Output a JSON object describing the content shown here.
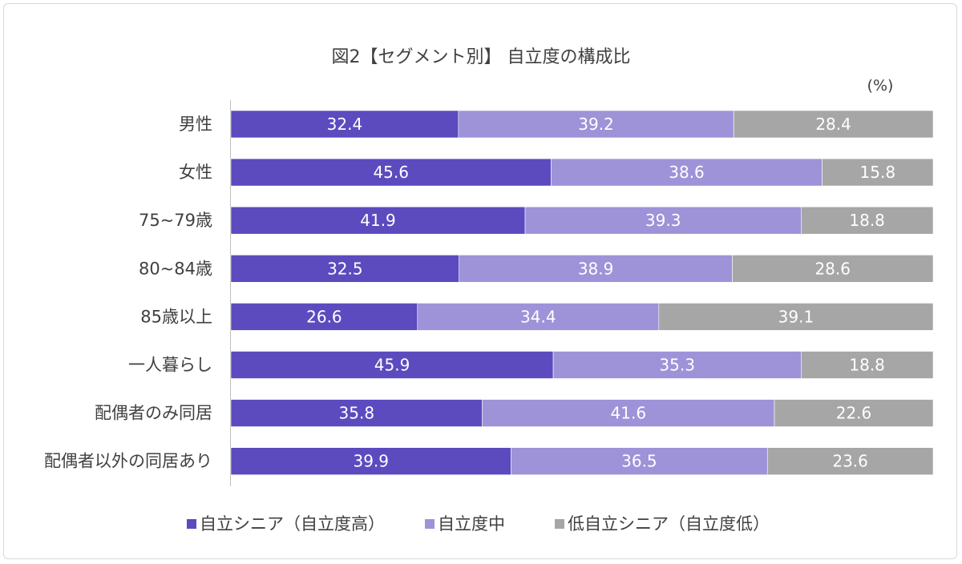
{
  "chart_data": {
    "type": "bar",
    "orientation": "horizontal",
    "stacked": true,
    "title": "図2【セグメント別】 自立度の構成比",
    "unit": "(%)",
    "categories": [
      "男性",
      "女性",
      "75~79歳",
      "80~84歳",
      "85歳以上",
      "一人暮らし",
      "配偶者のみ同居",
      "配偶者以外の同居あり"
    ],
    "series": [
      {
        "name": "自立シニア（自立度高）",
        "color": "#5b4bbf",
        "values": [
          32.4,
          45.6,
          41.9,
          32.5,
          26.6,
          45.9,
          35.8,
          39.9
        ]
      },
      {
        "name": "自立度中",
        "color": "#9e93d8",
        "values": [
          39.2,
          38.6,
          39.3,
          38.9,
          34.4,
          35.3,
          41.6,
          36.5
        ]
      },
      {
        "name": "低自立シニア（自立度低）",
        "color": "#a6a6a6",
        "values": [
          28.4,
          15.8,
          18.8,
          28.6,
          39.1,
          18.8,
          22.6,
          23.6
        ]
      }
    ],
    "legend_position": "bottom",
    "grid": false,
    "xlim": [
      0,
      100
    ]
  }
}
